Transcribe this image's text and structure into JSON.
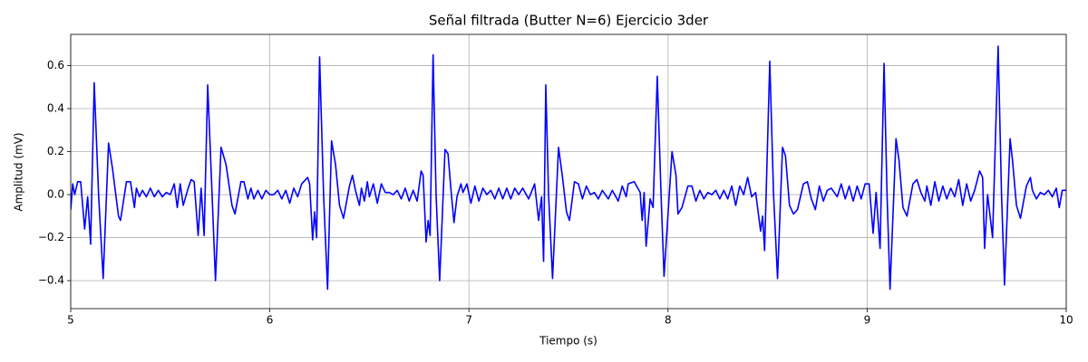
{
  "chart_data": {
    "type": "line",
    "title": "Señal filtrada (Butter N=6) Ejercicio 3der",
    "xlabel": "Tiempo (s)",
    "ylabel": "Amplitud (mV)",
    "xlim": [
      5,
      10
    ],
    "ylim": [
      -0.53,
      0.745
    ],
    "xticks": [
      5,
      6,
      7,
      8,
      9,
      10
    ],
    "yticks": [
      {
        "value": -0.4,
        "label": "−0.4"
      },
      {
        "value": -0.2,
        "label": "−0.2"
      },
      {
        "value": 0,
        "label": "0.0"
      },
      0.2,
      0.4,
      0.6
    ],
    "grid": true,
    "x": [
      5.0,
      5.01,
      5.02,
      5.035,
      5.05,
      5.07,
      5.085,
      5.1,
      5.118,
      5.14,
      5.163,
      5.19,
      5.21,
      5.24,
      5.25,
      5.28,
      5.3,
      5.32,
      5.33,
      5.345,
      5.36,
      5.38,
      5.4,
      5.42,
      5.44,
      5.46,
      5.48,
      5.5,
      5.52,
      5.535,
      5.55,
      5.565,
      5.59,
      5.605,
      5.62,
      5.64,
      5.655,
      5.67,
      5.688,
      5.71,
      5.727,
      5.755,
      5.78,
      5.81,
      5.825,
      5.855,
      5.87,
      5.89,
      5.905,
      5.92,
      5.94,
      5.96,
      5.98,
      6.0,
      6.02,
      6.04,
      6.06,
      6.08,
      6.1,
      6.12,
      6.14,
      6.16,
      6.19,
      6.2,
      6.215,
      6.225,
      6.235,
      6.25,
      6.27,
      6.29,
      6.31,
      6.33,
      6.35,
      6.37,
      6.4,
      6.415,
      6.43,
      6.45,
      6.46,
      6.475,
      6.49,
      6.5,
      6.52,
      6.54,
      6.56,
      6.58,
      6.6,
      6.62,
      6.64,
      6.66,
      6.68,
      6.7,
      6.72,
      6.74,
      6.76,
      6.77,
      6.785,
      6.795,
      6.805,
      6.82,
      6.835,
      6.853,
      6.88,
      6.895,
      6.91,
      6.925,
      6.94,
      6.96,
      6.97,
      6.99,
      7.01,
      7.03,
      7.05,
      7.07,
      7.09,
      7.11,
      7.13,
      7.15,
      7.17,
      7.19,
      7.21,
      7.23,
      7.25,
      7.27,
      7.3,
      7.33,
      7.35,
      7.365,
      7.375,
      7.386,
      7.4,
      7.42,
      7.45,
      7.47,
      7.49,
      7.505,
      7.53,
      7.55,
      7.57,
      7.59,
      7.61,
      7.63,
      7.65,
      7.67,
      7.7,
      7.72,
      7.75,
      7.77,
      7.79,
      7.8,
      7.83,
      7.86,
      7.87,
      7.88,
      7.89,
      7.91,
      7.925,
      7.946,
      7.965,
      7.98,
      8.02,
      8.04,
      8.05,
      8.07,
      8.1,
      8.12,
      8.14,
      8.16,
      8.18,
      8.2,
      8.22,
      8.24,
      8.26,
      8.28,
      8.3,
      8.32,
      8.34,
      8.36,
      8.38,
      8.4,
      8.42,
      8.44,
      8.465,
      8.475,
      8.485,
      8.511,
      8.53,
      8.55,
      8.575,
      8.59,
      8.61,
      8.63,
      8.65,
      8.68,
      8.7,
      8.72,
      8.74,
      8.76,
      8.78,
      8.8,
      8.82,
      8.85,
      8.87,
      8.89,
      8.91,
      8.93,
      8.95,
      8.97,
      8.99,
      9.01,
      9.03,
      9.045,
      9.065,
      9.085,
      9.1,
      9.115,
      9.145,
      9.16,
      9.18,
      9.2,
      9.23,
      9.25,
      9.27,
      9.29,
      9.3,
      9.32,
      9.34,
      9.36,
      9.38,
      9.4,
      9.42,
      9.44,
      9.46,
      9.48,
      9.5,
      9.52,
      9.54,
      9.565,
      9.58,
      9.59,
      9.605,
      9.63,
      9.658,
      9.675,
      9.69,
      9.718,
      9.73,
      9.75,
      9.77,
      9.8,
      9.82,
      9.83,
      9.85,
      9.87,
      9.89,
      9.91,
      9.93,
      9.95,
      9.965,
      9.98,
      10.0
    ],
    "series": [
      {
        "color": "#0000ff",
        "values": [
          -0.07,
          0.05,
          0.0,
          0.06,
          0.06,
          -0.16,
          -0.01,
          -0.23,
          0.52,
          0.0,
          -0.39,
          0.24,
          0.12,
          -0.1,
          -0.12,
          0.06,
          0.06,
          -0.06,
          0.03,
          -0.01,
          0.02,
          -0.01,
          0.03,
          -0.01,
          0.02,
          -0.01,
          0.01,
          0.0,
          0.05,
          -0.06,
          0.05,
          -0.05,
          0.03,
          0.07,
          0.06,
          -0.19,
          0.03,
          -0.19,
          0.51,
          0.0,
          -0.4,
          0.22,
          0.14,
          -0.05,
          -0.09,
          0.06,
          0.06,
          -0.02,
          0.03,
          -0.02,
          0.02,
          -0.02,
          0.02,
          0.0,
          0.0,
          0.02,
          -0.02,
          0.02,
          -0.04,
          0.03,
          -0.01,
          0.05,
          0.08,
          0.05,
          -0.21,
          -0.08,
          -0.2,
          0.64,
          0.0,
          -0.44,
          0.25,
          0.14,
          -0.05,
          -0.11,
          0.04,
          0.09,
          0.02,
          -0.05,
          0.03,
          -0.03,
          0.06,
          -0.01,
          0.05,
          -0.04,
          0.05,
          0.01,
          0.01,
          0.0,
          0.02,
          -0.02,
          0.03,
          -0.03,
          0.02,
          -0.03,
          0.11,
          0.09,
          -0.22,
          -0.12,
          -0.19,
          0.65,
          0.0,
          -0.4,
          0.21,
          0.19,
          0.02,
          -0.13,
          -0.01,
          0.05,
          0.01,
          0.05,
          -0.04,
          0.04,
          -0.03,
          0.03,
          0.0,
          0.02,
          -0.02,
          0.03,
          -0.02,
          0.03,
          -0.02,
          0.03,
          0.0,
          0.03,
          -0.02,
          0.05,
          -0.12,
          -0.01,
          -0.31,
          0.51,
          0.0,
          -0.39,
          0.22,
          0.08,
          -0.08,
          -0.12,
          0.06,
          0.05,
          -0.02,
          0.04,
          0.0,
          0.01,
          -0.02,
          0.02,
          -0.02,
          0.02,
          -0.03,
          0.04,
          -0.01,
          0.05,
          0.06,
          0.01,
          -0.12,
          0.01,
          -0.24,
          -0.02,
          -0.06,
          0.55,
          0.0,
          -0.38,
          0.2,
          0.09,
          -0.09,
          -0.06,
          0.04,
          0.04,
          -0.03,
          0.02,
          -0.02,
          0.01,
          0.0,
          0.02,
          -0.02,
          0.02,
          -0.02,
          0.04,
          -0.05,
          0.04,
          0.0,
          0.08,
          -0.01,
          0.01,
          -0.17,
          -0.1,
          -0.26,
          0.62,
          0.0,
          -0.39,
          0.22,
          0.18,
          -0.05,
          -0.09,
          -0.07,
          0.05,
          0.06,
          -0.02,
          -0.07,
          0.04,
          -0.03,
          0.02,
          0.03,
          -0.01,
          0.05,
          -0.02,
          0.04,
          -0.03,
          0.04,
          -0.02,
          0.05,
          0.05,
          -0.18,
          0.01,
          -0.25,
          0.61,
          0.0,
          -0.44,
          0.26,
          0.16,
          -0.06,
          -0.1,
          0.05,
          0.07,
          0.01,
          -0.03,
          0.04,
          -0.05,
          0.06,
          -0.03,
          0.04,
          -0.02,
          0.03,
          -0.01,
          0.07,
          -0.05,
          0.05,
          -0.03,
          0.02,
          0.11,
          0.08,
          -0.25,
          0.0,
          -0.2,
          0.69,
          0.0,
          -0.42,
          0.26,
          0.16,
          -0.05,
          -0.11,
          0.04,
          0.08,
          0.02,
          -0.02,
          0.01,
          0.0,
          0.02,
          -0.01,
          0.03,
          -0.06,
          0.02,
          0.02
        ]
      }
    ]
  }
}
